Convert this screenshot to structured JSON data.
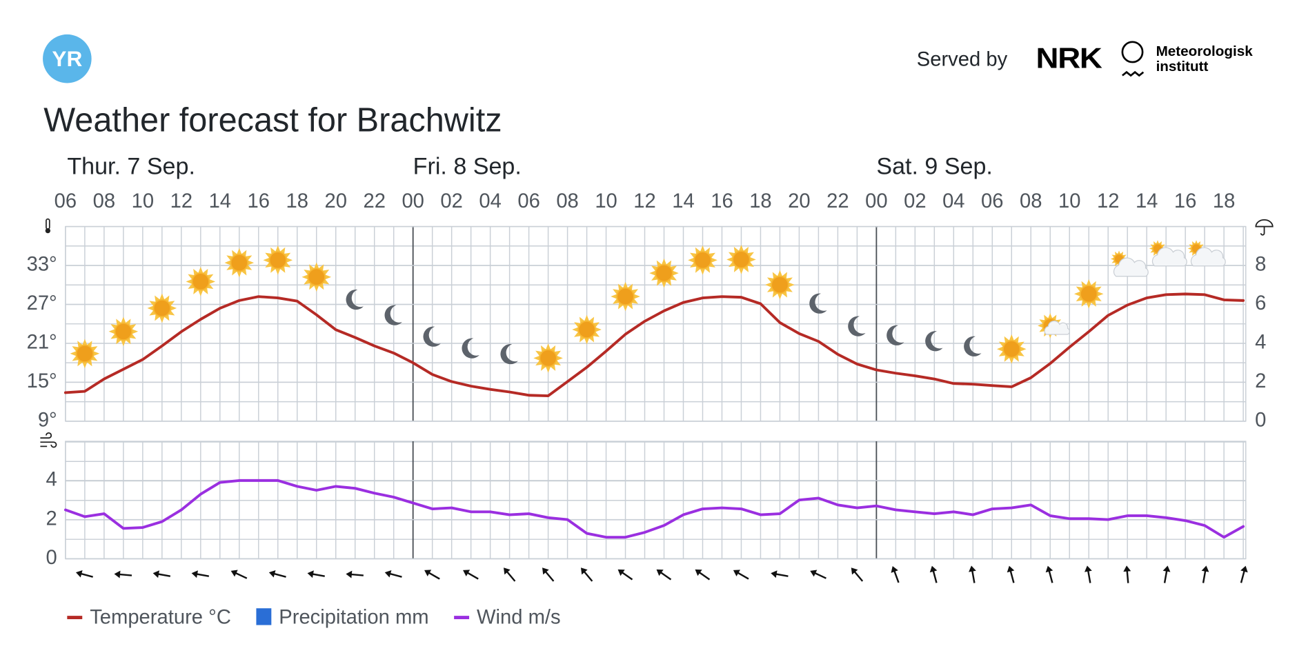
{
  "header": {
    "logo": "YR",
    "served_by": "Served by",
    "nrk": "NRK",
    "met": [
      "Meteorologisk",
      "institutt"
    ]
  },
  "chart_data": [
    {
      "type": "line",
      "title": "Weather forecast for Brachwitz",
      "days": [
        {
          "label": "Thur. 7 Sep.",
          "x": 0
        },
        {
          "label": "Fri. 8 Sep.",
          "x": 18
        },
        {
          "label": "Sat. 9 Sep.",
          "x": 42
        }
      ],
      "x": [
        0,
        1,
        2,
        3,
        4,
        5,
        6,
        7,
        8,
        9,
        10,
        11,
        12,
        13,
        14,
        15,
        16,
        17,
        18,
        19,
        20,
        21,
        22,
        23,
        24,
        25,
        26,
        27,
        28,
        29,
        30,
        31,
        32,
        33,
        34,
        35,
        36,
        37,
        38,
        39,
        40,
        41,
        42,
        43,
        44,
        45,
        46,
        47,
        48,
        49,
        50,
        51,
        52,
        53,
        54,
        55,
        56,
        57,
        58,
        59,
        60,
        61
      ],
      "xlim": [
        0,
        61
      ],
      "xticks": [
        {
          "value": 0,
          "label": "06"
        },
        {
          "value": 2,
          "label": "08"
        },
        {
          "value": 4,
          "label": "10"
        },
        {
          "value": 6,
          "label": "12"
        },
        {
          "value": 8,
          "label": "14"
        },
        {
          "value": 10,
          "label": "16"
        },
        {
          "value": 12,
          "label": "18"
        },
        {
          "value": 14,
          "label": "20"
        },
        {
          "value": 16,
          "label": "22"
        },
        {
          "value": 18,
          "label": "00"
        },
        {
          "value": 20,
          "label": "02"
        },
        {
          "value": 22,
          "label": "04"
        },
        {
          "value": 24,
          "label": "06"
        },
        {
          "value": 26,
          "label": "08"
        },
        {
          "value": 28,
          "label": "10"
        },
        {
          "value": 30,
          "label": "12"
        },
        {
          "value": 32,
          "label": "14"
        },
        {
          "value": 34,
          "label": "16"
        },
        {
          "value": 36,
          "label": "18"
        },
        {
          "value": 38,
          "label": "20"
        },
        {
          "value": 40,
          "label": "22"
        },
        {
          "value": 42,
          "label": "00"
        },
        {
          "value": 44,
          "label": "02"
        },
        {
          "value": 46,
          "label": "04"
        },
        {
          "value": 48,
          "label": "06"
        },
        {
          "value": 50,
          "label": "08"
        },
        {
          "value": 52,
          "label": "10"
        },
        {
          "value": 54,
          "label": "12"
        },
        {
          "value": 56,
          "label": "14"
        },
        {
          "value": 58,
          "label": "16"
        },
        {
          "value": 60,
          "label": "18"
        }
      ],
      "ylim": [
        9,
        39
      ],
      "yticks": [
        {
          "value": 9,
          "label": "9°"
        },
        {
          "value": 15,
          "label": "15°"
        },
        {
          "value": 21,
          "label": "21°"
        },
        {
          "value": 27,
          "label": "27°"
        },
        {
          "value": 33,
          "label": "33°"
        }
      ],
      "y2lim": [
        0,
        10
      ],
      "y2ticks": [
        0,
        2,
        4,
        6,
        8
      ],
      "grid": true,
      "series": [
        {
          "name": "Temperature °C",
          "color": "#b52a25",
          "values": [
            13.4,
            13.6,
            15.5,
            17,
            18.5,
            20.6,
            22.8,
            24.7,
            26.4,
            27.6,
            28.2,
            28,
            27.5,
            25.4,
            23.1,
            21.9,
            20.6,
            19.5,
            18,
            16.2,
            15.1,
            14.4,
            13.9,
            13.5,
            13,
            12.9,
            15.1,
            17.3,
            19.8,
            22.4,
            24.4,
            26,
            27.3,
            28,
            28.2,
            28.1,
            27.1,
            24.2,
            22.5,
            21.3,
            19.3,
            17.8,
            16.9,
            16.4,
            16,
            15.5,
            14.8,
            14.7,
            14.5,
            14.3,
            15.7,
            17.9,
            20.4,
            22.8,
            25.3,
            26.9,
            28,
            28.5,
            28.6,
            28.5,
            27.7,
            27.6
          ]
        },
        {
          "name": "Precipitation mm",
          "color": "#2a6ed6",
          "axis": "y2",
          "values": [
            0,
            0,
            0,
            0,
            0,
            0,
            0,
            0,
            0,
            0,
            0,
            0,
            0,
            0,
            0,
            0,
            0,
            0,
            0,
            0,
            0,
            0,
            0,
            0,
            0,
            0,
            0,
            0,
            0,
            0,
            0,
            0,
            0,
            0,
            0,
            0,
            0,
            0,
            0,
            0,
            0,
            0,
            0,
            0,
            0,
            0,
            0,
            0,
            0,
            0,
            0,
            0,
            0,
            0,
            0,
            0,
            0,
            0,
            0,
            0,
            0,
            0
          ]
        }
      ]
    },
    {
      "type": "line",
      "x": [
        0,
        1,
        2,
        3,
        4,
        5,
        6,
        7,
        8,
        9,
        10,
        11,
        12,
        13,
        14,
        15,
        16,
        17,
        18,
        19,
        20,
        21,
        22,
        23,
        24,
        25,
        26,
        27,
        28,
        29,
        30,
        31,
        32,
        33,
        34,
        35,
        36,
        37,
        38,
        39,
        40,
        41,
        42,
        43,
        44,
        45,
        46,
        47,
        48,
        49,
        50,
        51,
        52,
        53,
        54,
        55,
        56,
        57,
        58,
        59,
        60,
        61
      ],
      "xlim": [
        0,
        61
      ],
      "ylim": [
        0,
        6
      ],
      "yticks": [
        0,
        2,
        4
      ],
      "grid": true,
      "series": [
        {
          "name": "Wind m/s",
          "color": "#9a2fe0",
          "values": [
            2.5,
            2.15,
            2.3,
            1.55,
            1.6,
            1.9,
            2.5,
            3.3,
            3.9,
            4,
            4,
            4,
            3.7,
            3.5,
            3.7,
            3.6,
            3.35,
            3.15,
            2.85,
            2.55,
            2.6,
            2.4,
            2.4,
            2.25,
            2.3,
            2.1,
            2,
            1.3,
            1.1,
            1.1,
            1.35,
            1.7,
            2.25,
            2.55,
            2.6,
            2.55,
            2.25,
            2.3,
            3,
            3.1,
            2.75,
            2.6,
            2.7,
            2.5,
            2.4,
            2.3,
            2.4,
            2.25,
            2.55,
            2.6,
            2.75,
            2.2,
            2.05,
            2.05,
            2,
            2.2,
            2.2,
            2.1,
            1.95,
            1.7,
            1.1,
            1.65
          ]
        }
      ],
      "wind_direction": {
        "x": [
          1,
          3,
          5,
          7,
          9,
          11,
          13,
          15,
          17,
          19,
          21,
          23,
          25,
          27,
          29,
          31,
          33,
          35,
          37,
          39,
          41,
          43,
          45,
          47,
          49,
          51,
          53,
          55,
          57,
          59,
          61
        ],
        "values": [
          285,
          275,
          280,
          280,
          295,
          285,
          280,
          275,
          285,
          300,
          300,
          320,
          320,
          320,
          305,
          305,
          305,
          300,
          280,
          295,
          320,
          340,
          345,
          350,
          345,
          345,
          350,
          355,
          10,
          10,
          15
        ]
      }
    }
  ]
}
